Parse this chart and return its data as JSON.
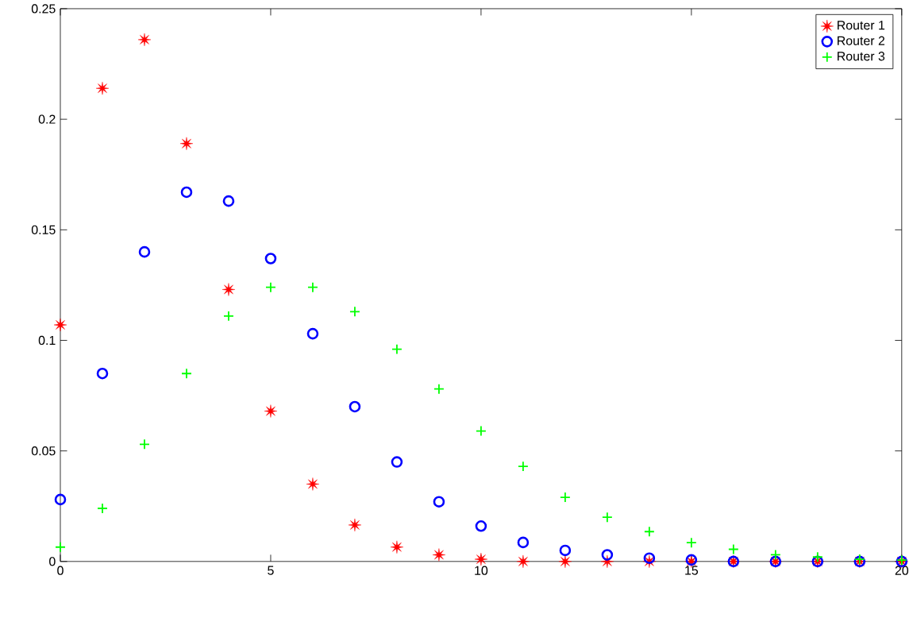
{
  "chart_data": {
    "type": "scatter",
    "x": [
      0,
      1,
      2,
      3,
      4,
      5,
      6,
      7,
      8,
      9,
      10,
      11,
      12,
      13,
      14,
      15,
      16,
      17,
      18,
      19,
      20
    ],
    "series": [
      {
        "name": "Router 1",
        "color": "#ff0000",
        "marker": "star",
        "values": [
          0.107,
          0.214,
          0.236,
          0.189,
          0.123,
          0.068,
          0.035,
          0.0165,
          0.0065,
          0.003,
          0.001,
          0,
          0,
          0,
          0,
          0,
          0,
          0,
          0,
          0,
          0
        ]
      },
      {
        "name": "Router 2",
        "color": "#0000ff",
        "marker": "circle",
        "values": [
          0.028,
          0.085,
          0.14,
          0.167,
          0.163,
          0.137,
          0.103,
          0.07,
          0.045,
          0.027,
          0.016,
          0.0086,
          0.005,
          0.003,
          0.0015,
          0.0007,
          0,
          0,
          0,
          0,
          0
        ]
      },
      {
        "name": "Router 3",
        "color": "#00ff00",
        "marker": "cross",
        "values": [
          0.0065,
          0.024,
          0.053,
          0.085,
          0.111,
          0.124,
          0.124,
          0.113,
          0.096,
          0.078,
          0.059,
          0.043,
          0.029,
          0.02,
          0.0135,
          0.0085,
          0.0055,
          0.003,
          0.002,
          0.001,
          0.0006
        ]
      }
    ],
    "xlim": [
      0,
      20
    ],
    "ylim": [
      0,
      0.25
    ],
    "xticks": [
      0,
      5,
      10,
      15,
      20
    ],
    "yticks": [
      0,
      0.05,
      0.1,
      0.15,
      0.2,
      0.25
    ],
    "grid": false,
    "legend": "top right"
  }
}
